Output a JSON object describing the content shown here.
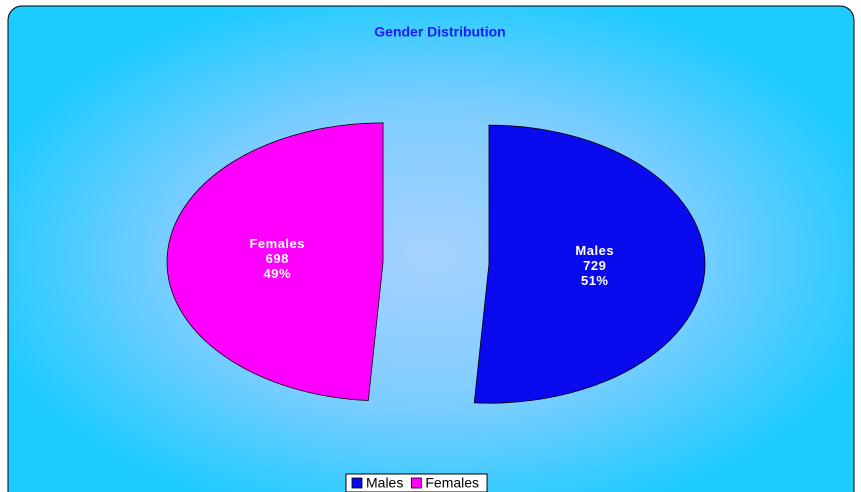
{
  "chart_data": {
    "type": "pie",
    "title": "Gender Distribution",
    "categories": [
      "Males",
      "Females"
    ],
    "values": [
      729,
      698
    ],
    "percent_labels": [
      "51%",
      "49%"
    ],
    "colors": [
      "#0a0aee",
      "#ff00ff"
    ],
    "exploded": true,
    "legend": "bottom"
  }
}
